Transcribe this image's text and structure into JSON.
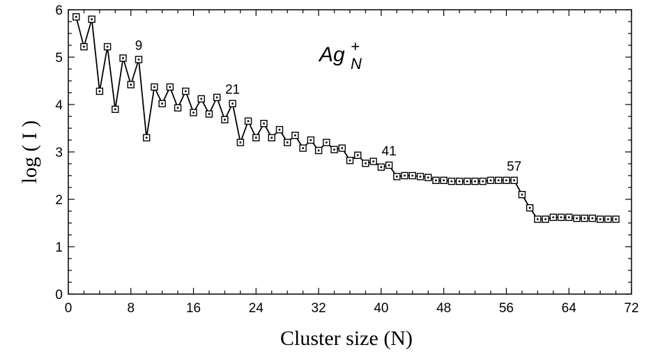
{
  "chart_data": {
    "type": "line",
    "title": "Ag",
    "title_subscript": "N",
    "title_superscript": "+",
    "xlabel": "Cluster size (N)",
    "ylabel": "log ( I )",
    "xlim": [
      0,
      72
    ],
    "ylim": [
      0,
      6
    ],
    "xticks": [
      0,
      8,
      16,
      24,
      32,
      40,
      48,
      56,
      64,
      72
    ],
    "yticks": [
      0,
      1,
      2,
      3,
      4,
      5,
      6
    ],
    "grid": false,
    "marker": "square",
    "annotations": [
      {
        "text": "9",
        "x": 9,
        "y": 4.95
      },
      {
        "text": "21",
        "x": 21,
        "y": 4.02
      },
      {
        "text": "41",
        "x": 41,
        "y": 2.72
      },
      {
        "text": "57",
        "x": 57,
        "y": 2.4
      }
    ],
    "series": [
      {
        "x": [
          1,
          2,
          3,
          4,
          5,
          6,
          7,
          8,
          9,
          10,
          11,
          12,
          13,
          14,
          15,
          16,
          17,
          18,
          19,
          20,
          21,
          22,
          23,
          24,
          25,
          26,
          27,
          28,
          29,
          30,
          31,
          32,
          33,
          34,
          35,
          36,
          37,
          38,
          39,
          40,
          41,
          42,
          43,
          44,
          45,
          46,
          47,
          48,
          49,
          50,
          51,
          52,
          53,
          54,
          55,
          56,
          57,
          58,
          59,
          60,
          61,
          62,
          63,
          64,
          65,
          66,
          67,
          68,
          69,
          70
        ],
        "y": [
          5.85,
          5.22,
          5.8,
          4.28,
          5.22,
          3.9,
          4.98,
          4.42,
          4.95,
          3.3,
          4.37,
          4.02,
          4.37,
          3.93,
          4.28,
          3.83,
          4.12,
          3.8,
          4.15,
          3.68,
          4.02,
          3.2,
          3.65,
          3.3,
          3.6,
          3.3,
          3.47,
          3.2,
          3.35,
          3.08,
          3.25,
          3.03,
          3.2,
          3.05,
          3.08,
          2.82,
          2.93,
          2.76,
          2.8,
          2.68,
          2.72,
          2.48,
          2.5,
          2.5,
          2.48,
          2.46,
          2.4,
          2.4,
          2.38,
          2.38,
          2.38,
          2.38,
          2.38,
          2.4,
          2.4,
          2.4,
          2.4,
          2.1,
          1.82,
          1.58,
          1.58,
          1.62,
          1.62,
          1.62,
          1.6,
          1.6,
          1.6,
          1.58,
          1.58,
          1.58
        ]
      }
    ]
  }
}
